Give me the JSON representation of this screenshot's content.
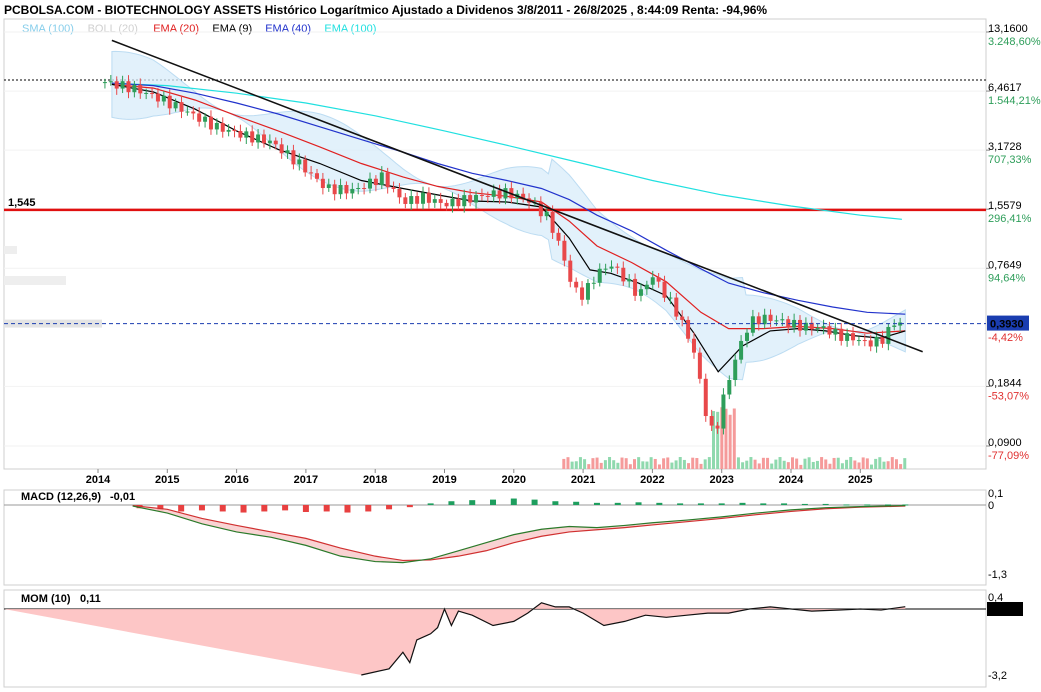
{
  "header": {
    "title": "PCBOLSA.COM - BIOTECHNOLOGY ASSETS Histórico Logarítmico Ajustado a Dividenos 3/8/2011 - 26/8/2025 , 8:44:09 Renta: -94,96%"
  },
  "legend": [
    {
      "label": "SMA (100)",
      "color": "#87ceeb"
    },
    {
      "label": "BOLL (20)",
      "color": "#d0d0d0"
    },
    {
      "label": "EMA (20)",
      "color": "#e02020"
    },
    {
      "label": "EMA (9)",
      "color": "#000000"
    },
    {
      "label": "EMA (40)",
      "color": "#2233cc"
    },
    {
      "label": "EMA (100)",
      "color": "#20e0e0"
    }
  ],
  "colors": {
    "up": "#2e9e5a",
    "down": "#e8484a",
    "ema9": "#000000",
    "ema20": "#e02020",
    "ema40": "#2233cc",
    "ema100": "#20e0e0",
    "boll_fill": "#d8ecfa",
    "support": "#e01010",
    "price_line": "#1a3db0",
    "macd_up": "#1e9e5e",
    "macd_down": "#e84040",
    "mom_fill": "#fdbcbc"
  },
  "chart_data": {
    "type": "candlestick",
    "scale": "log",
    "x_ticks": [
      "2014",
      "2015",
      "2016",
      "2017",
      "2018",
      "2019",
      "2020",
      "2021",
      "2022",
      "2023",
      "2024",
      "2025"
    ],
    "y_ticks": [
      {
        "value": "13,1600",
        "pct": "3.248,60%"
      },
      {
        "value": "6,4617",
        "pct": "1.544,21%"
      },
      {
        "value": "3,1728",
        "pct": "707,33%"
      },
      {
        "value": "1,5579",
        "pct": "296,41%"
      },
      {
        "value": "0,7649",
        "pct": "94,64%"
      },
      {
        "value": "0,1844",
        "pct": "-53,07%"
      },
      {
        "value": "0,0900",
        "pct": "-77,09%"
      }
    ],
    "pct_hidden_label": "-4,42%",
    "ylim": [
      0.09,
      13.16
    ],
    "current_price": "0,3930",
    "support_level": "1,545",
    "trendline": {
      "start": [
        "2014.2",
        11.9
      ],
      "end": [
        "2025.9",
        0.28
      ]
    },
    "series_close": [
      [
        "2014.1",
        7.2
      ],
      [
        "2014.5",
        6.7
      ],
      [
        "2014.9",
        5.9
      ],
      [
        "2015.3",
        5.0
      ],
      [
        "2015.7",
        4.2
      ],
      [
        "2016.1",
        3.8
      ],
      [
        "2016.5",
        3.5
      ],
      [
        "2016.9",
        2.7
      ],
      [
        "2017.3",
        2.0
      ],
      [
        "2017.7",
        1.95
      ],
      [
        "2018.1",
        2.3
      ],
      [
        "2018.4",
        1.7
      ],
      [
        "2018.7",
        1.8
      ],
      [
        "2019.0",
        1.65
      ],
      [
        "2019.3",
        1.75
      ],
      [
        "2019.6",
        1.85
      ],
      [
        "2019.9",
        1.9
      ],
      [
        "2020.2",
        1.75
      ],
      [
        "2020.5",
        1.4
      ],
      [
        "2020.7",
        0.92
      ],
      [
        "2020.85",
        0.6
      ],
      [
        "2021.0",
        0.55
      ],
      [
        "2021.2",
        0.72
      ],
      [
        "2021.4",
        0.8
      ],
      [
        "2021.6",
        0.68
      ],
      [
        "2021.8",
        0.55
      ],
      [
        "2022.0",
        0.7
      ],
      [
        "2022.2",
        0.55
      ],
      [
        "2022.4",
        0.42
      ],
      [
        "2022.6",
        0.28
      ],
      [
        "2022.8",
        0.12
      ],
      [
        "2022.9",
        0.1
      ],
      [
        "2023.0",
        0.15
      ],
      [
        "2023.2",
        0.26
      ],
      [
        "2023.4",
        0.4
      ],
      [
        "2023.6",
        0.42
      ],
      [
        "2023.8",
        0.41
      ],
      [
        "2024.0",
        0.39
      ],
      [
        "2024.2",
        0.38
      ],
      [
        "2024.5",
        0.37
      ],
      [
        "2024.7",
        0.34
      ],
      [
        "2024.9",
        0.33
      ],
      [
        "2025.1",
        0.31
      ],
      [
        "2025.3",
        0.32
      ],
      [
        "2025.5",
        0.4
      ],
      [
        "2025.65",
        0.393
      ]
    ],
    "ema9": [
      [
        "2014.2",
        7.0
      ],
      [
        "2014.8",
        6.4
      ],
      [
        "2015.4",
        5.2
      ],
      [
        "2016.0",
        4.0
      ],
      [
        "2016.6",
        3.2
      ],
      [
        "2017.2",
        2.7
      ],
      [
        "2017.8",
        2.2
      ],
      [
        "2018.4",
        2.0
      ],
      [
        "2018.9",
        1.85
      ],
      [
        "2019.4",
        1.72
      ],
      [
        "2019.9",
        1.7
      ],
      [
        "2020.4",
        1.6
      ],
      [
        "2020.8",
        1.1
      ],
      [
        "2021.1",
        0.75
      ],
      [
        "2021.4",
        0.72
      ],
      [
        "2021.8",
        0.64
      ],
      [
        "2022.2",
        0.55
      ],
      [
        "2022.6",
        0.35
      ],
      [
        "2022.95",
        0.22
      ],
      [
        "2023.3",
        0.3
      ],
      [
        "2023.7",
        0.36
      ],
      [
        "2024.1",
        0.37
      ],
      [
        "2024.5",
        0.36
      ],
      [
        "2024.9",
        0.34
      ],
      [
        "2025.3",
        0.33
      ],
      [
        "2025.65",
        0.36
      ]
    ],
    "ema20": [
      [
        "2014.2",
        7.0
      ],
      [
        "2014.8",
        6.7
      ],
      [
        "2015.4",
        5.8
      ],
      [
        "2016.0",
        4.8
      ],
      [
        "2016.6",
        4.0
      ],
      [
        "2017.2",
        3.3
      ],
      [
        "2017.8",
        2.7
      ],
      [
        "2018.4",
        2.3
      ],
      [
        "2018.9",
        2.05
      ],
      [
        "2019.4",
        1.9
      ],
      [
        "2019.9",
        1.82
      ],
      [
        "2020.4",
        1.7
      ],
      [
        "2020.8",
        1.35
      ],
      [
        "2021.2",
        1.0
      ],
      [
        "2021.7",
        0.82
      ],
      [
        "2022.2",
        0.65
      ],
      [
        "2022.7",
        0.45
      ],
      [
        "2023.1",
        0.37
      ],
      [
        "2023.6",
        0.37
      ],
      [
        "2024.1",
        0.38
      ],
      [
        "2024.6",
        0.37
      ],
      [
        "2025.1",
        0.35
      ],
      [
        "2025.65",
        0.36
      ]
    ],
    "ema40": [
      [
        "2014.2",
        7.1
      ],
      [
        "2014.8",
        6.9
      ],
      [
        "2015.4",
        6.3
      ],
      [
        "2016.0",
        5.6
      ],
      [
        "2016.6",
        4.9
      ],
      [
        "2017.2",
        4.2
      ],
      [
        "2017.8",
        3.6
      ],
      [
        "2018.4",
        3.1
      ],
      [
        "2018.9",
        2.7
      ],
      [
        "2019.4",
        2.4
      ],
      [
        "2019.9",
        2.2
      ],
      [
        "2020.4",
        2.0
      ],
      [
        "2020.8",
        1.75
      ],
      [
        "2021.2",
        1.45
      ],
      [
        "2021.7",
        1.2
      ],
      [
        "2022.2",
        0.95
      ],
      [
        "2022.7",
        0.76
      ],
      [
        "2023.1",
        0.64
      ],
      [
        "2023.6",
        0.57
      ],
      [
        "2024.1",
        0.52
      ],
      [
        "2024.6",
        0.48
      ],
      [
        "2025.1",
        0.45
      ],
      [
        "2025.65",
        0.44
      ]
    ],
    "ema100": [
      [
        "2014.2",
        7.1
      ],
      [
        "2015.0",
        6.9
      ],
      [
        "2016.0",
        6.3
      ],
      [
        "2017.0",
        5.6
      ],
      [
        "2018.0",
        4.8
      ],
      [
        "2019.0",
        4.0
      ],
      [
        "2020.0",
        3.3
      ],
      [
        "2021.0",
        2.7
      ],
      [
        "2022.0",
        2.2
      ],
      [
        "2023.0",
        1.85
      ],
      [
        "2024.0",
        1.62
      ],
      [
        "2025.0",
        1.45
      ],
      [
        "2025.6",
        1.38
      ]
    ],
    "macd": {
      "label": "MACD (12,26,9)",
      "value": "-0,01",
      "y_ticks": [
        "0,1",
        "0",
        "-1,3"
      ],
      "ylim": [
        -1.3,
        0.1
      ],
      "line": [
        [
          "2014.5",
          -0.02
        ],
        [
          "2015.0",
          -0.15
        ],
        [
          "2015.5",
          -0.35
        ],
        [
          "2016.0",
          -0.5
        ],
        [
          "2016.5",
          -0.6
        ],
        [
          "2017.0",
          -0.75
        ],
        [
          "2017.5",
          -0.95
        ],
        [
          "2018.0",
          -1.05
        ],
        [
          "2018.4",
          -1.07
        ],
        [
          "2018.8",
          -1.0
        ],
        [
          "2019.2",
          -0.85
        ],
        [
          "2019.6",
          -0.7
        ],
        [
          "2020.0",
          -0.55
        ],
        [
          "2020.4",
          -0.45
        ],
        [
          "2020.8",
          -0.4
        ],
        [
          "2021.2",
          -0.42
        ],
        [
          "2021.6",
          -0.38
        ],
        [
          "2022.0",
          -0.33
        ],
        [
          "2022.5",
          -0.28
        ],
        [
          "2023.0",
          -0.22
        ],
        [
          "2023.5",
          -0.15
        ],
        [
          "2024.0",
          -0.09
        ],
        [
          "2024.5",
          -0.05
        ],
        [
          "2025.0",
          -0.03
        ],
        [
          "2025.65",
          -0.01
        ]
      ],
      "signal": [
        [
          "2014.5",
          -0.01
        ],
        [
          "2015.0",
          -0.08
        ],
        [
          "2015.5",
          -0.25
        ],
        [
          "2016.0",
          -0.38
        ],
        [
          "2016.5",
          -0.5
        ],
        [
          "2017.0",
          -0.62
        ],
        [
          "2017.5",
          -0.8
        ],
        [
          "2018.0",
          -0.95
        ],
        [
          "2018.4",
          -1.03
        ],
        [
          "2018.8",
          -1.02
        ],
        [
          "2019.2",
          -0.95
        ],
        [
          "2019.6",
          -0.85
        ],
        [
          "2020.0",
          -0.7
        ],
        [
          "2020.4",
          -0.58
        ],
        [
          "2020.8",
          -0.5
        ],
        [
          "2021.2",
          -0.46
        ],
        [
          "2021.6",
          -0.42
        ],
        [
          "2022.0",
          -0.37
        ],
        [
          "2022.5",
          -0.31
        ],
        [
          "2023.0",
          -0.25
        ],
        [
          "2023.5",
          -0.18
        ],
        [
          "2024.0",
          -0.12
        ],
        [
          "2024.5",
          -0.07
        ],
        [
          "2025.0",
          -0.04
        ],
        [
          "2025.65",
          -0.02
        ]
      ],
      "histogram": [
        [
          "2014.6",
          -0.06
        ],
        [
          "2014.9",
          -0.1
        ],
        [
          "2015.2",
          -0.12
        ],
        [
          "2015.5",
          -0.1
        ],
        [
          "2015.8",
          -0.12
        ],
        [
          "2016.1",
          -0.14
        ],
        [
          "2016.4",
          -0.12
        ],
        [
          "2016.7",
          -0.1
        ],
        [
          "2017.0",
          -0.13
        ],
        [
          "2017.3",
          -0.12
        ],
        [
          "2017.6",
          -0.14
        ],
        [
          "2017.9",
          -0.12
        ],
        [
          "2018.2",
          -0.08
        ],
        [
          "2018.5",
          -0.04
        ],
        [
          "2018.8",
          0.03
        ],
        [
          "2019.1",
          0.07
        ],
        [
          "2019.4",
          0.09
        ],
        [
          "2019.7",
          0.1
        ],
        [
          "2020.0",
          0.12
        ],
        [
          "2020.3",
          0.1
        ],
        [
          "2020.6",
          0.07
        ],
        [
          "2020.9",
          0.06
        ],
        [
          "2021.2",
          0.04
        ],
        [
          "2021.5",
          0.04
        ],
        [
          "2021.8",
          0.05
        ],
        [
          "2022.1",
          0.04
        ],
        [
          "2022.4",
          0.03
        ],
        [
          "2022.7",
          0.03
        ],
        [
          "2023.0",
          0.03
        ],
        [
          "2023.3",
          0.04
        ],
        [
          "2023.6",
          0.03
        ],
        [
          "2023.9",
          0.03
        ],
        [
          "2024.2",
          0.02
        ],
        [
          "2024.5",
          0.02
        ],
        [
          "2024.8",
          0.01
        ],
        [
          "2025.1",
          0.01
        ],
        [
          "2025.4",
          0.01
        ],
        [
          "2025.65",
          0.01
        ]
      ]
    },
    "momentum": {
      "label": "MOM (10)",
      "value": "0,11",
      "current": "0,113",
      "y_ticks": [
        "0,4",
        "-3,2"
      ],
      "ylim": [
        -3.2,
        0.4
      ],
      "line": [
        [
          "2017.8",
          -3.2
        ],
        [
          "2018.2",
          -2.9
        ],
        [
          "2018.4",
          -2.1
        ],
        [
          "2018.5",
          -2.6
        ],
        [
          "2018.6",
          -1.5
        ],
        [
          "2018.8",
          -1.2
        ],
        [
          "2018.9",
          -0.9
        ],
        [
          "2019.0",
          0.0
        ],
        [
          "2019.1",
          -0.8
        ],
        [
          "2019.2",
          -0.1
        ],
        [
          "2019.4",
          -0.3
        ],
        [
          "2019.7",
          -0.8
        ],
        [
          "2020.0",
          -0.6
        ],
        [
          "2020.2",
          -0.2
        ],
        [
          "2020.4",
          0.3
        ],
        [
          "2020.6",
          0.1
        ],
        [
          "2020.8",
          0.1
        ],
        [
          "2021.0",
          -0.2
        ],
        [
          "2021.3",
          -0.8
        ],
        [
          "2021.6",
          -0.6
        ],
        [
          "2021.9",
          -0.3
        ],
        [
          "2022.2",
          -0.4
        ],
        [
          "2022.5",
          -0.3
        ],
        [
          "2022.8",
          -0.2
        ],
        [
          "2023.1",
          -0.2
        ],
        [
          "2023.4",
          0.0
        ],
        [
          "2023.7",
          0.1
        ],
        [
          "2024.0",
          0.0
        ],
        [
          "2024.3",
          -0.1
        ],
        [
          "2024.7",
          -0.05
        ],
        [
          "2025.0",
          0.0
        ],
        [
          "2025.3",
          -0.05
        ],
        [
          "2025.65",
          0.11
        ]
      ]
    }
  }
}
